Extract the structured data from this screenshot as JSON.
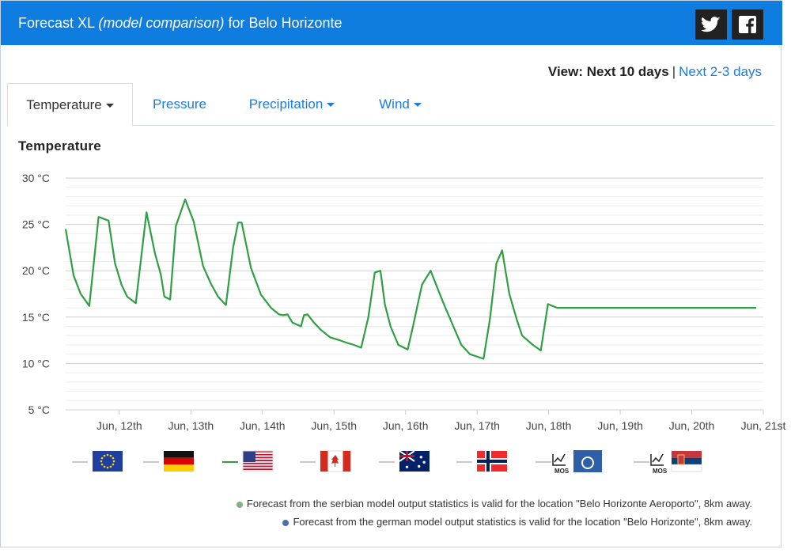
{
  "header": {
    "title_prefix": "Forecast XL",
    "title_model": "(model comparison)",
    "title_suffix": "for Belo Horizonte"
  },
  "social": {
    "twitter_icon": "twitter-icon",
    "facebook_icon": "facebook-icon"
  },
  "view": {
    "label": "View: Next 10 days",
    "separator": "|",
    "alt_link": "Next 2-3 days"
  },
  "tabs": [
    {
      "label": "Temperature",
      "dropdown": true,
      "active": true
    },
    {
      "label": "Pressure",
      "dropdown": false,
      "active": false
    },
    {
      "label": "Precipitation",
      "dropdown": true,
      "active": false
    },
    {
      "label": "Wind",
      "dropdown": true,
      "active": false
    }
  ],
  "section_title": "Temperature",
  "chart_data": {
    "type": "line",
    "title": "",
    "ylim": [
      5,
      30
    ],
    "yticks": [
      "30 °C",
      "25 °C",
      "20 °C",
      "15 °C",
      "10 °C",
      "5 °C"
    ],
    "ytick_values": [
      30,
      25,
      20,
      15,
      10,
      5
    ],
    "x_unit": "days since Jun 11 00:00",
    "xticks": [
      "Jun, 12th",
      "Jun, 13th",
      "Jun, 14th",
      "Jun, 15th",
      "Jun, 16th",
      "Jun, 17th",
      "Jun, 18th",
      "Jun, 19th",
      "Jun, 20th",
      "Jun, 21st"
    ],
    "xtick_values": [
      1,
      2,
      3,
      4,
      5,
      6,
      7,
      8,
      9,
      10
    ],
    "grid": true,
    "series": [
      {
        "model": "usa",
        "color": "#2ea043",
        "x": [
          0.25,
          0.36,
          0.46,
          0.58,
          0.71,
          0.85,
          0.94,
          1.03,
          1.11,
          1.23,
          1.38,
          1.5,
          1.58,
          1.63,
          1.71,
          1.79,
          1.92,
          2.04,
          2.17,
          2.28,
          2.38,
          2.49,
          2.59,
          2.66,
          2.71,
          2.84,
          2.98,
          3.12,
          3.23,
          3.29,
          3.35,
          3.42,
          3.48,
          3.54,
          3.58,
          3.63,
          3.71,
          3.82,
          3.95,
          4.08,
          4.19,
          4.28,
          4.38,
          4.48,
          4.57,
          4.65,
          4.71,
          4.79,
          4.9,
          5.03,
          5.11,
          5.23,
          5.35,
          5.53,
          5.69,
          5.78,
          5.9,
          6.09,
          6.18,
          6.27,
          6.35,
          6.45,
          6.56,
          6.63,
          6.78,
          6.89,
          6.99,
          7.12,
          7.28,
          7.34,
          7.43,
          7.52,
          7.62,
          7.73,
          7.85,
          7.96,
          8.08,
          8.16,
          8.25,
          8.36,
          8.5,
          8.62,
          8.71,
          8.83,
          8.96,
          9.03,
          9.15,
          9.26,
          9.36,
          9.47,
          9.56,
          9.67,
          9.79,
          9.9,
          10.02
        ],
        "y": [
          24.5,
          19.5,
          17.5,
          16.2,
          25.8,
          25.4,
          20.8,
          18.5,
          17.2,
          16.5,
          26.3,
          21.8,
          19.6,
          17.2,
          16.9,
          24.8,
          27.7,
          25.3,
          20.5,
          18.6,
          17.2,
          16.3,
          22.5,
          25.2,
          25.2,
          20.3,
          17.4,
          16.0,
          15.3,
          15.2,
          15.3,
          14.4,
          14.2,
          14.0,
          15.2,
          15.3,
          14.5,
          13.6,
          12.8,
          12.5,
          12.2,
          12.0,
          11.7,
          15.0,
          19.8,
          20.0,
          16.4,
          14.0,
          12.0,
          11.5,
          14.2,
          18.5,
          20.0,
          16.5,
          13.6,
          12.0,
          11.0,
          10.5,
          14.8,
          20.8,
          22.2,
          17.5,
          14.6,
          13.0,
          12.0,
          11.4,
          16.4,
          16.0,
          16.0,
          16.0,
          16.0,
          16.0,
          16.0,
          16.0,
          16.0,
          16.0,
          16.0,
          16.0,
          16.0,
          16.0,
          16.0,
          16.0,
          16.0,
          16.0,
          16.0,
          16.0,
          16.0,
          16.0,
          16.0,
          16.0,
          16.0,
          16.0,
          16.0,
          16.0,
          16.0
        ]
      }
    ]
  },
  "legend": [
    {
      "model": "eu",
      "active": false
    },
    {
      "model": "germany",
      "active": false
    },
    {
      "model": "usa",
      "active": true
    },
    {
      "model": "canada",
      "active": false
    },
    {
      "model": "australia",
      "active": false
    },
    {
      "model": "norway",
      "active": false
    },
    {
      "model": "germany-mos",
      "active": false,
      "mos_label": "MOS"
    },
    {
      "model": "serbia-mos",
      "active": false,
      "mos_label": "MOS"
    }
  ],
  "notes": [
    {
      "text": "Forecast from the serbian model output statistics is valid for the location \"Belo Horizonte Aeroporto\", 8km away.",
      "dot_color": "#7fb27f"
    },
    {
      "text": "Forecast from the german model output statistics is valid for the location \"Belo Horizonte\", 8km away.",
      "dot_color": "#4a6fa5"
    }
  ],
  "colors": {
    "accent": "#0f7ce0",
    "link": "#1e7be0",
    "line": "#2ea043"
  }
}
